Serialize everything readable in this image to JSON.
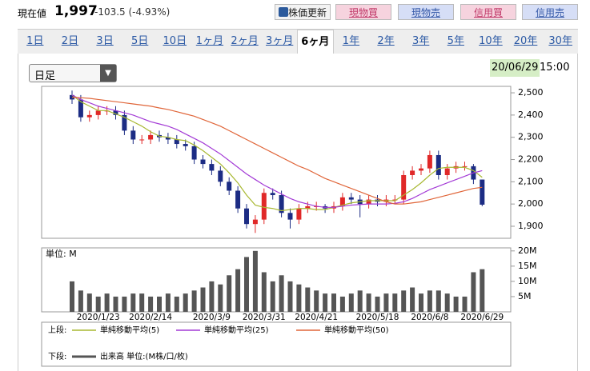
{
  "header": {
    "label": "現在値",
    "price": "1,997",
    "change": "-103.5 (-4.93%)"
  },
  "buttons": [
    "株価更新",
    "現物買",
    "現物売",
    "信用買",
    "信用売"
  ],
  "tabs": [
    "1日",
    "2日",
    "3日",
    "5日",
    "10日",
    "1ヶ月",
    "2ヶ月",
    "3ヶ月",
    "6ヶ月",
    "1年",
    "2年",
    "3年",
    "5年",
    "10年",
    "20年",
    "30年"
  ],
  "active_tab_index": 8,
  "dropdown": "日足",
  "date": "20/06/29",
  "time": "15:00",
  "legend": {
    "upper": "上段:",
    "lower": "下段:"
  },
  "chart_data": {
    "type": "candlestick",
    "up_color": "#e02828",
    "down_color": "#1c2c84",
    "categories": [
      null,
      null,
      null,
      "2020/1/23",
      null,
      null,
      null,
      null,
      null,
      "2020/2/14",
      null,
      null,
      null,
      null,
      null,
      null,
      "2020/3/9",
      null,
      null,
      null,
      null,
      null,
      "2020/3/31",
      null,
      null,
      null,
      null,
      null,
      "2020/4/21",
      null,
      null,
      null,
      null,
      null,
      null,
      "2020/5/18",
      null,
      null,
      null,
      null,
      null,
      "2020/6/8",
      null,
      null,
      null,
      null,
      null,
      "2020/6/29"
    ],
    "open": [
      2490,
      2470,
      2390,
      2400,
      2420,
      2420,
      2400,
      2330,
      2290,
      2290,
      2310,
      2300,
      2290,
      2270,
      2260,
      2200,
      2180,
      2150,
      2100,
      2060,
      1980,
      1910,
      1930,
      2050,
      2040,
      1960,
      1930,
      1980,
      1990,
      1990,
      1980,
      1990,
      2030,
      2020,
      2000,
      2020,
      2010,
      2020,
      2020,
      2130,
      2150,
      2160,
      2220,
      2130,
      2160,
      2170,
      2170,
      2110
    ],
    "high": [
      2510,
      2490,
      2420,
      2440,
      2440,
      2440,
      2420,
      2350,
      2310,
      2330,
      2330,
      2320,
      2310,
      2290,
      2280,
      2220,
      2200,
      2170,
      2120,
      2080,
      2000,
      1950,
      2070,
      2070,
      2060,
      1980,
      2000,
      2010,
      2010,
      2000,
      2010,
      2050,
      2050,
      2040,
      2040,
      2040,
      2040,
      2040,
      2150,
      2170,
      2180,
      2240,
      2240,
      2180,
      2190,
      2190,
      2180,
      2110
    ],
    "low": [
      2450,
      2370,
      2370,
      2380,
      2400,
      2380,
      2310,
      2270,
      2270,
      2270,
      2280,
      2270,
      2250,
      2240,
      2180,
      2160,
      2130,
      2080,
      2040,
      1960,
      1890,
      1870,
      1910,
      2020,
      1940,
      1890,
      1910,
      1960,
      1970,
      1960,
      1960,
      1970,
      2000,
      1940,
      1980,
      1990,
      1990,
      2000,
      2000,
      2110,
      2130,
      2140,
      2110,
      2110,
      2140,
      2150,
      2090,
      1990
    ],
    "close": [
      2470,
      2390,
      2400,
      2420,
      2420,
      2400,
      2330,
      2290,
      2290,
      2310,
      2300,
      2290,
      2270,
      2260,
      2200,
      2180,
      2150,
      2100,
      2060,
      1980,
      1910,
      1930,
      2050,
      2040,
      1960,
      1930,
      1980,
      1990,
      1990,
      1980,
      1990,
      2030,
      2020,
      2000,
      2020,
      2010,
      2020,
      2020,
      2130,
      2150,
      2160,
      2220,
      2130,
      2160,
      2170,
      2170,
      2110,
      1997
    ],
    "series": [
      {
        "name": "単純移動平均(5)",
        "color": "#a8b832",
        "values": [
          2490,
          2460,
          2440,
          2420,
          2420,
          2405,
          2390,
          2370,
          2350,
          2325,
          2305,
          2300,
          2290,
          2285,
          2265,
          2240,
          2210,
          2180,
          2140,
          2095,
          2040,
          1995,
          1985,
          1980,
          1970,
          1975,
          1980,
          1980,
          1975,
          1975,
          1985,
          1995,
          2005,
          2010,
          2015,
          2015,
          2015,
          2015,
          2040,
          2065,
          2095,
          2130,
          2160,
          2165,
          2165,
          2165,
          2150,
          2120
        ]
      },
      {
        "name": "単純移動平均(25)",
        "color": "#a43cd6",
        "values": [
          2490,
          2470,
          2455,
          2440,
          2430,
          2420,
          2410,
          2400,
          2385,
          2370,
          2360,
          2350,
          2335,
          2315,
          2295,
          2275,
          2250,
          2225,
          2195,
          2165,
          2135,
          2110,
          2085,
          2065,
          2045,
          2025,
          2010,
          2000,
          1990,
          1985,
          1985,
          1990,
          1995,
          1998,
          2000,
          2000,
          2000,
          2003,
          2010,
          2025,
          2045,
          2065,
          2080,
          2095,
          2110,
          2125,
          2140,
          2150
        ]
      },
      {
        "name": "単純移動平均(50)",
        "color": "#e0663a",
        "values": [
          2480,
          2478,
          2475,
          2470,
          2465,
          2460,
          2455,
          2450,
          2445,
          2440,
          2432,
          2425,
          2415,
          2405,
          2395,
          2380,
          2365,
          2350,
          2330,
          2310,
          2290,
          2270,
          2250,
          2230,
          2210,
          2190,
          2170,
          2155,
          2135,
          2115,
          2100,
          2085,
          2070,
          2055,
          2040,
          2025,
          2010,
          2000,
          2000,
          2005,
          2010,
          2020,
          2030,
          2040,
          2050,
          2060,
          2070,
          2075
        ]
      }
    ],
    "ylim": [
      1846,
      2529
    ],
    "yticks": [
      {
        "value": 1900,
        "label": "1,900"
      },
      {
        "value": 2000,
        "label": "2,000"
      },
      {
        "value": 2100,
        "label": "2,100"
      },
      {
        "value": 2200,
        "label": "2,200"
      },
      {
        "value": 2300,
        "label": "2,300"
      },
      {
        "value": 2400,
        "label": "2,400"
      },
      {
        "value": 2500,
        "label": "2,500"
      }
    ],
    "volume": {
      "name": "出来高 単位:(M株/口/枚)",
      "unit_label": "単位: M",
      "color": "#555555",
      "values": [
        10,
        7,
        6,
        5,
        6,
        5,
        5,
        6,
        6,
        5,
        5,
        6,
        5,
        6,
        7,
        8,
        10,
        9,
        12,
        14,
        18,
        20,
        13,
        10,
        12,
        10,
        9,
        8,
        7,
        6,
        6,
        5,
        6,
        7,
        6,
        5,
        6,
        6,
        7,
        8,
        6,
        7,
        7,
        6,
        5,
        5,
        13,
        14
      ],
      "ylim": [
        0,
        21
      ],
      "yticks": [
        {
          "value": 5,
          "label": "5M"
        },
        {
          "value": 10,
          "label": "10M"
        },
        {
          "value": 15,
          "label": "15M"
        },
        {
          "value": 20,
          "label": "20M"
        }
      ]
    }
  }
}
